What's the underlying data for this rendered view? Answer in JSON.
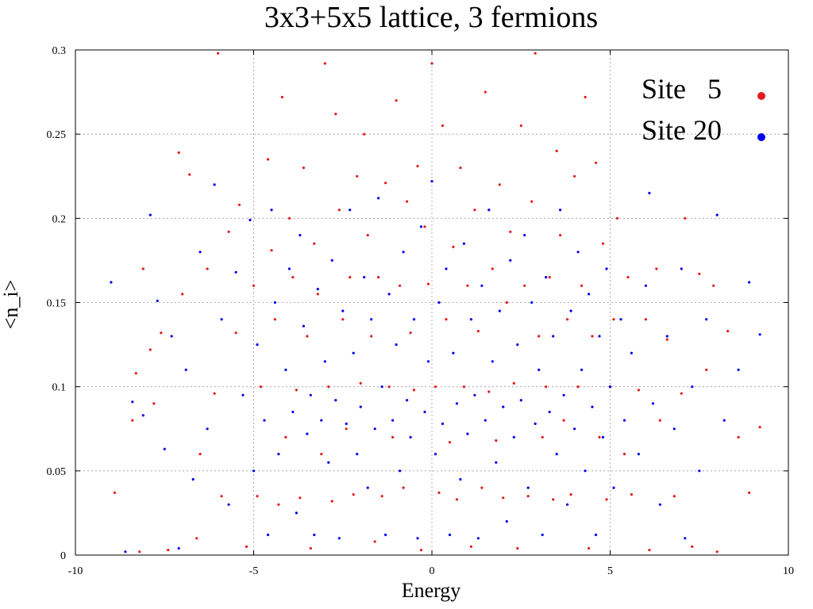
{
  "chart_data": {
    "type": "scatter",
    "title": "3x3+5x5 lattice, 3 fermions",
    "xlabel": "Energy",
    "ylabel": "<n_i>",
    "xlim": [
      -10,
      10
    ],
    "ylim": [
      0,
      0.3
    ],
    "x_ticks": [
      -10,
      -5,
      0,
      5,
      10
    ],
    "y_ticks": [
      0,
      0.05,
      0.1,
      0.15,
      0.2,
      0.25,
      0.3
    ],
    "x_tick_labels": [
      "-10",
      "-5",
      "0",
      "5",
      "10"
    ],
    "y_tick_labels": [
      "0",
      "0.05",
      "0.1",
      "0.15",
      "0.2",
      "0.25",
      "0.3"
    ],
    "grid": true,
    "legend": "top-right",
    "series": [
      {
        "name": "Site   5",
        "color": "#e41a1c",
        "points": [
          [
            -8.9,
            0.037
          ],
          [
            -8.4,
            0.08
          ],
          [
            -8.3,
            0.108
          ],
          [
            -8.2,
            0.002
          ],
          [
            -8.1,
            0.17
          ],
          [
            -7.9,
            0.122
          ],
          [
            -7.8,
            0.09
          ],
          [
            -7.6,
            0.132
          ],
          [
            -7.4,
            0.003
          ],
          [
            -7.1,
            0.239
          ],
          [
            -7.0,
            0.155
          ],
          [
            -6.8,
            0.226
          ],
          [
            -6.6,
            0.01
          ],
          [
            -6.5,
            0.06
          ],
          [
            -6.3,
            0.17
          ],
          [
            -6.1,
            0.096
          ],
          [
            -6.0,
            0.298
          ],
          [
            -5.9,
            0.035
          ],
          [
            -5.7,
            0.192
          ],
          [
            -5.5,
            0.132
          ],
          [
            -5.4,
            0.208
          ],
          [
            -5.2,
            0.005
          ],
          [
            -5.0,
            0.16
          ],
          [
            -4.9,
            0.035
          ],
          [
            -4.8,
            0.1
          ],
          [
            -4.6,
            0.235
          ],
          [
            -4.5,
            0.181
          ],
          [
            -4.4,
            0.14
          ],
          [
            -4.3,
            0.03
          ],
          [
            -4.2,
            0.272
          ],
          [
            -4.1,
            0.07
          ],
          [
            -4.0,
            0.2
          ],
          [
            -3.9,
            0.165
          ],
          [
            -3.8,
            0.098
          ],
          [
            -3.7,
            0.034
          ],
          [
            -3.6,
            0.23
          ],
          [
            -3.5,
            0.13
          ],
          [
            -3.4,
            0.004
          ],
          [
            -3.3,
            0.185
          ],
          [
            -3.2,
            0.155
          ],
          [
            -3.1,
            0.06
          ],
          [
            -3.0,
            0.292
          ],
          [
            -2.9,
            0.1
          ],
          [
            -2.8,
            0.032
          ],
          [
            -2.7,
            0.262
          ],
          [
            -2.6,
            0.205
          ],
          [
            -2.5,
            0.14
          ],
          [
            -2.4,
            0.075
          ],
          [
            -2.3,
            0.165
          ],
          [
            -2.2,
            0.036
          ],
          [
            -2.1,
            0.225
          ],
          [
            -2.0,
            0.102
          ],
          [
            -1.9,
            0.25
          ],
          [
            -1.8,
            0.19
          ],
          [
            -1.7,
            0.13
          ],
          [
            -1.6,
            0.008
          ],
          [
            -1.5,
            0.165
          ],
          [
            -1.4,
            0.035
          ],
          [
            -1.3,
            0.221
          ],
          [
            -1.2,
            0.1
          ],
          [
            -1.1,
            0.07
          ],
          [
            -1.0,
            0.27
          ],
          [
            -0.9,
            0.16
          ],
          [
            -0.8,
            0.04
          ],
          [
            -0.7,
            0.21
          ],
          [
            -0.6,
            0.132
          ],
          [
            -0.5,
            0.098
          ],
          [
            -0.4,
            0.231
          ],
          [
            -0.3,
            0.003
          ],
          [
            -0.2,
            0.195
          ],
          [
            -0.1,
            0.161
          ],
          [
            0.0,
            0.292
          ],
          [
            0.1,
            0.1
          ],
          [
            0.2,
            0.037
          ],
          [
            0.3,
            0.255
          ],
          [
            0.4,
            0.14
          ],
          [
            0.5,
            0.067
          ],
          [
            0.6,
            0.183
          ],
          [
            0.7,
            0.033
          ],
          [
            0.8,
            0.23
          ],
          [
            0.9,
            0.1
          ],
          [
            1.0,
            0.16
          ],
          [
            1.1,
            0.005
          ],
          [
            1.2,
            0.205
          ],
          [
            1.3,
            0.133
          ],
          [
            1.4,
            0.04
          ],
          [
            1.5,
            0.275
          ],
          [
            1.6,
            0.097
          ],
          [
            1.7,
            0.17
          ],
          [
            1.8,
            0.068
          ],
          [
            1.9,
            0.22
          ],
          [
            2.0,
            0.034
          ],
          [
            2.1,
            0.15
          ],
          [
            2.2,
            0.192
          ],
          [
            2.3,
            0.102
          ],
          [
            2.4,
            0.004
          ],
          [
            2.5,
            0.255
          ],
          [
            2.6,
            0.16
          ],
          [
            2.7,
            0.035
          ],
          [
            2.8,
            0.21
          ],
          [
            2.9,
            0.298
          ],
          [
            3.0,
            0.13
          ],
          [
            3.1,
            0.07
          ],
          [
            3.2,
            0.1
          ],
          [
            3.3,
            0.165
          ],
          [
            3.4,
            0.033
          ],
          [
            3.5,
            0.24
          ],
          [
            3.6,
            0.19
          ],
          [
            3.7,
            0.08
          ],
          [
            3.8,
            0.14
          ],
          [
            3.9,
            0.036
          ],
          [
            4.0,
            0.225
          ],
          [
            4.1,
            0.1
          ],
          [
            4.2,
            0.16
          ],
          [
            4.3,
            0.272
          ],
          [
            4.4,
            0.004
          ],
          [
            4.5,
            0.13
          ],
          [
            4.6,
            0.233
          ],
          [
            4.7,
            0.07
          ],
          [
            4.8,
            0.185
          ],
          [
            4.9,
            0.033
          ],
          [
            5.0,
            0.1
          ],
          [
            5.1,
            0.14
          ],
          [
            5.2,
            0.2
          ],
          [
            5.4,
            0.06
          ],
          [
            5.5,
            0.165
          ],
          [
            5.6,
            0.036
          ],
          [
            5.8,
            0.098
          ],
          [
            6.0,
            0.14
          ],
          [
            6.1,
            0.003
          ],
          [
            6.3,
            0.17
          ],
          [
            6.4,
            0.08
          ],
          [
            6.6,
            0.128
          ],
          [
            6.8,
            0.035
          ],
          [
            7.0,
            0.096
          ],
          [
            7.1,
            0.2
          ],
          [
            7.3,
            0.005
          ],
          [
            7.5,
            0.167
          ],
          [
            7.7,
            0.11
          ],
          [
            7.9,
            0.16
          ],
          [
            8.0,
            0.002
          ],
          [
            8.3,
            0.133
          ],
          [
            8.6,
            0.07
          ],
          [
            8.9,
            0.037
          ],
          [
            9.2,
            0.076
          ]
        ]
      },
      {
        "name": "Site 20",
        "color": "#0000ee",
        "points": [
          [
            -9.0,
            0.162
          ],
          [
            -8.6,
            0.002
          ],
          [
            -8.4,
            0.091
          ],
          [
            -8.1,
            0.083
          ],
          [
            -7.9,
            0.202
          ],
          [
            -7.7,
            0.151
          ],
          [
            -7.5,
            0.063
          ],
          [
            -7.3,
            0.13
          ],
          [
            -7.1,
            0.004
          ],
          [
            -6.9,
            0.11
          ],
          [
            -6.7,
            0.045
          ],
          [
            -6.5,
            0.18
          ],
          [
            -6.3,
            0.075
          ],
          [
            -6.1,
            0.22
          ],
          [
            -5.9,
            0.14
          ],
          [
            -5.7,
            0.03
          ],
          [
            -5.5,
            0.168
          ],
          [
            -5.3,
            0.095
          ],
          [
            -5.1,
            0.199
          ],
          [
            -5.0,
            0.05
          ],
          [
            -4.9,
            0.125
          ],
          [
            -4.7,
            0.08
          ],
          [
            -4.6,
            0.012
          ],
          [
            -4.5,
            0.205
          ],
          [
            -4.4,
            0.15
          ],
          [
            -4.3,
            0.06
          ],
          [
            -4.1,
            0.11
          ],
          [
            -4.0,
            0.17
          ],
          [
            -3.9,
            0.085
          ],
          [
            -3.8,
            0.025
          ],
          [
            -3.7,
            0.19
          ],
          [
            -3.6,
            0.136
          ],
          [
            -3.5,
            0.072
          ],
          [
            -3.4,
            0.095
          ],
          [
            -3.3,
            0.012
          ],
          [
            -3.2,
            0.158
          ],
          [
            -3.1,
            0.08
          ],
          [
            -3.0,
            0.115
          ],
          [
            -2.9,
            0.055
          ],
          [
            -2.8,
            0.175
          ],
          [
            -2.7,
            0.092
          ],
          [
            -2.6,
            0.01
          ],
          [
            -2.5,
            0.145
          ],
          [
            -2.4,
            0.078
          ],
          [
            -2.3,
            0.205
          ],
          [
            -2.2,
            0.12
          ],
          [
            -2.1,
            0.06
          ],
          [
            -2.0,
            0.088
          ],
          [
            -1.9,
            0.165
          ],
          [
            -1.8,
            0.04
          ],
          [
            -1.7,
            0.14
          ],
          [
            -1.6,
            0.075
          ],
          [
            -1.5,
            0.212
          ],
          [
            -1.4,
            0.1
          ],
          [
            -1.3,
            0.012
          ],
          [
            -1.2,
            0.155
          ],
          [
            -1.1,
            0.08
          ],
          [
            -1.0,
            0.125
          ],
          [
            -0.9,
            0.05
          ],
          [
            -0.8,
            0.18
          ],
          [
            -0.7,
            0.092
          ],
          [
            -0.6,
            0.07
          ],
          [
            -0.5,
            0.14
          ],
          [
            -0.4,
            0.01
          ],
          [
            -0.3,
            0.195
          ],
          [
            -0.2,
            0.085
          ],
          [
            -0.1,
            0.115
          ],
          [
            0.0,
            0.222
          ],
          [
            0.1,
            0.06
          ],
          [
            0.2,
            0.15
          ],
          [
            0.3,
            0.078
          ],
          [
            0.4,
            0.17
          ],
          [
            0.5,
            0.012
          ],
          [
            0.6,
            0.12
          ],
          [
            0.7,
            0.09
          ],
          [
            0.8,
            0.045
          ],
          [
            0.9,
            0.185
          ],
          [
            1.0,
            0.072
          ],
          [
            1.1,
            0.14
          ],
          [
            1.2,
            0.095
          ],
          [
            1.3,
            0.01
          ],
          [
            1.4,
            0.16
          ],
          [
            1.5,
            0.08
          ],
          [
            1.6,
            0.205
          ],
          [
            1.7,
            0.115
          ],
          [
            1.8,
            0.055
          ],
          [
            1.9,
            0.145
          ],
          [
            2.0,
            0.088
          ],
          [
            2.1,
            0.02
          ],
          [
            2.2,
            0.175
          ],
          [
            2.3,
            0.07
          ],
          [
            2.4,
            0.125
          ],
          [
            2.5,
            0.092
          ],
          [
            2.6,
            0.19
          ],
          [
            2.7,
            0.04
          ],
          [
            2.8,
            0.15
          ],
          [
            2.9,
            0.078
          ],
          [
            3.0,
            0.11
          ],
          [
            3.1,
            0.012
          ],
          [
            3.2,
            0.165
          ],
          [
            3.3,
            0.085
          ],
          [
            3.4,
            0.13
          ],
          [
            3.5,
            0.06
          ],
          [
            3.6,
            0.205
          ],
          [
            3.7,
            0.095
          ],
          [
            3.8,
            0.03
          ],
          [
            3.9,
            0.145
          ],
          [
            4.0,
            0.075
          ],
          [
            4.1,
            0.18
          ],
          [
            4.2,
            0.11
          ],
          [
            4.3,
            0.05
          ],
          [
            4.4,
            0.155
          ],
          [
            4.5,
            0.088
          ],
          [
            4.6,
            0.012
          ],
          [
            4.7,
            0.13
          ],
          [
            4.8,
            0.07
          ],
          [
            4.9,
            0.17
          ],
          [
            5.0,
            0.1
          ],
          [
            5.1,
            0.04
          ],
          [
            5.3,
            0.14
          ],
          [
            5.4,
            0.08
          ],
          [
            5.6,
            0.12
          ],
          [
            5.8,
            0.06
          ],
          [
            6.0,
            0.16
          ],
          [
            6.1,
            0.215
          ],
          [
            6.2,
            0.09
          ],
          [
            6.4,
            0.03
          ],
          [
            6.6,
            0.13
          ],
          [
            6.8,
            0.075
          ],
          [
            7.0,
            0.17
          ],
          [
            7.1,
            0.01
          ],
          [
            7.3,
            0.1
          ],
          [
            7.5,
            0.05
          ],
          [
            7.7,
            0.14
          ],
          [
            8.0,
            0.202
          ],
          [
            8.2,
            0.08
          ],
          [
            8.6,
            0.11
          ],
          [
            8.9,
            0.162
          ],
          [
            9.2,
            0.131
          ]
        ]
      }
    ]
  }
}
